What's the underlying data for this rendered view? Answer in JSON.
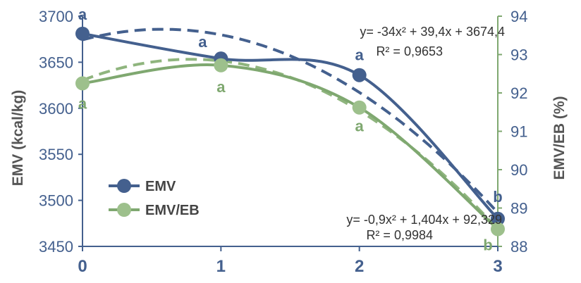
{
  "chart_data": {
    "type": "line",
    "x": [
      0,
      1,
      2,
      3
    ],
    "xtick_labels": [
      "0",
      "1",
      "2",
      "3"
    ],
    "y_left": {
      "label": "EMV (kcal/kg)",
      "ylim": [
        3450,
        3700
      ],
      "ticks": [
        3450,
        3500,
        3550,
        3600,
        3650,
        3700
      ]
    },
    "y_right": {
      "label": "EMV/EB (%)",
      "ylim": [
        88,
        94
      ],
      "ticks": [
        88,
        89,
        90,
        91,
        92,
        93,
        94
      ]
    },
    "series": [
      {
        "name": "EMV",
        "axis": "left",
        "color": "#44608e",
        "values": [
          3681,
          3654,
          3636,
          3480
        ],
        "labels": [
          "a",
          "a",
          "a",
          "b"
        ],
        "trend": {
          "a": -34,
          "b": 39.4,
          "c": 3674.4
        },
        "equation": "y= -34x² + 39,4x + 3674,4",
        "r2": "R² = 0,9653"
      },
      {
        "name": "EMV/EB",
        "axis": "right",
        "color": "#7fa870",
        "values": [
          92.25,
          92.72,
          91.62,
          88.45
        ],
        "labels": [
          "a",
          "a",
          "a",
          "b"
        ],
        "trend": {
          "a": -0.9,
          "b": 1.404,
          "c": 92.329
        },
        "equation": "y= -0,9x² + 1,404x + 92,329",
        "r2": "R² = 0,9984"
      }
    ],
    "legend": "left-lower"
  }
}
